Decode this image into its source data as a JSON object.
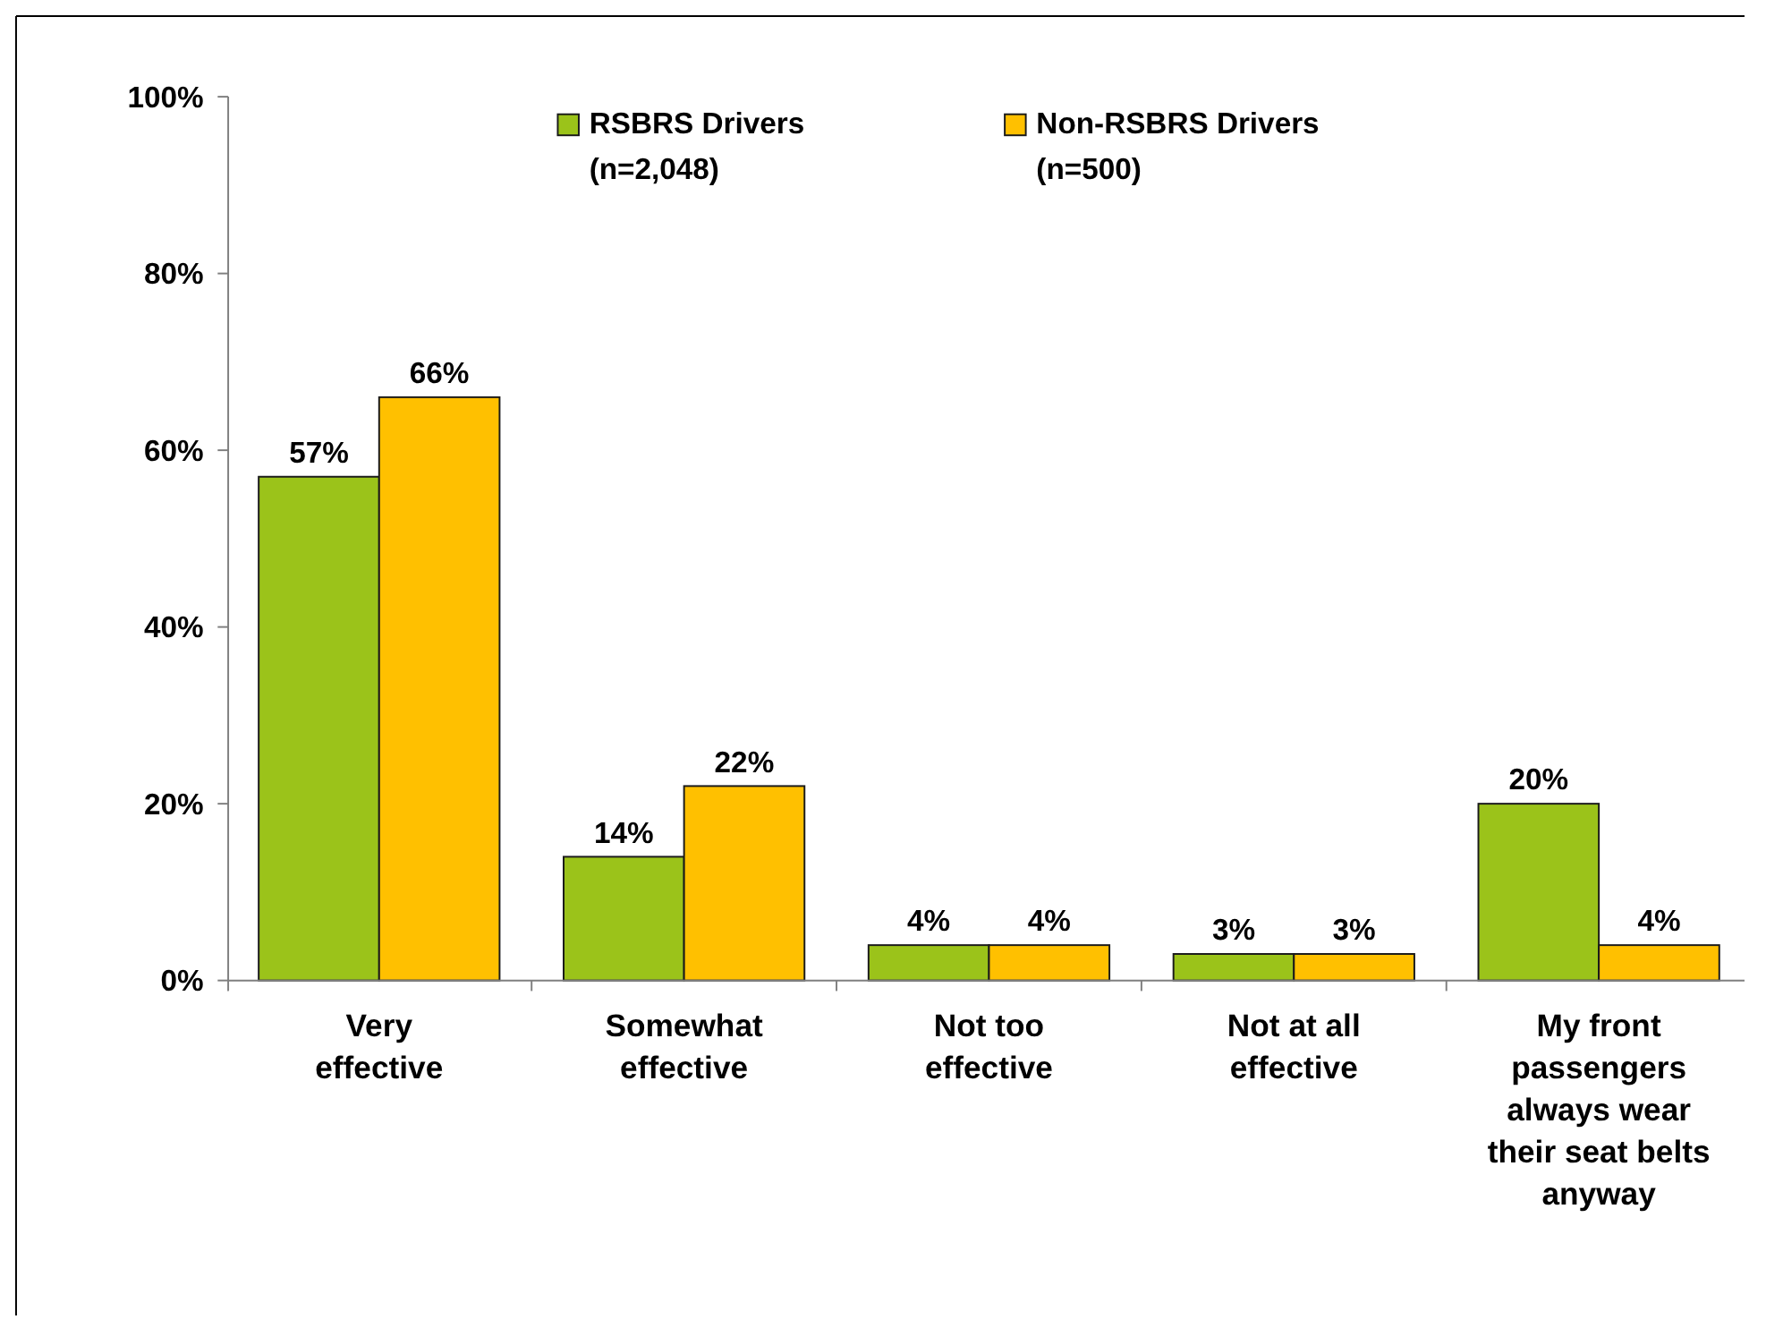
{
  "chart_data": {
    "type": "bar",
    "categories": [
      "Very\neffective",
      "Somewhat\neffective",
      "Not too\neffective",
      "Not at all\neffective",
      "My front\npassengers\nalways wear\ntheir seat belts\nanyway"
    ],
    "series": [
      {
        "name": "RSBRS Drivers\n(n=2,048)",
        "color": "#9bc31a",
        "values": [
          57,
          14,
          4,
          3,
          20
        ],
        "value_labels": [
          "57%",
          "14%",
          "4%",
          "3%",
          "20%"
        ]
      },
      {
        "name": "Non-RSBRS Drivers\n(n=500)",
        "color": "#ffc000",
        "values": [
          66,
          22,
          4,
          3,
          4
        ],
        "value_labels": [
          "66%",
          "22%",
          "4%",
          "3%",
          "4%"
        ]
      }
    ],
    "ylim": [
      0,
      100
    ],
    "yticks": [
      {
        "value": 0,
        "label": "0%"
      },
      {
        "value": 20,
        "label": "20%"
      },
      {
        "value": 40,
        "label": "40%"
      },
      {
        "value": 60,
        "label": "60%"
      },
      {
        "value": 80,
        "label": "80%"
      },
      {
        "value": 100,
        "label": "100%"
      }
    ],
    "grid": false,
    "legend": "top"
  }
}
